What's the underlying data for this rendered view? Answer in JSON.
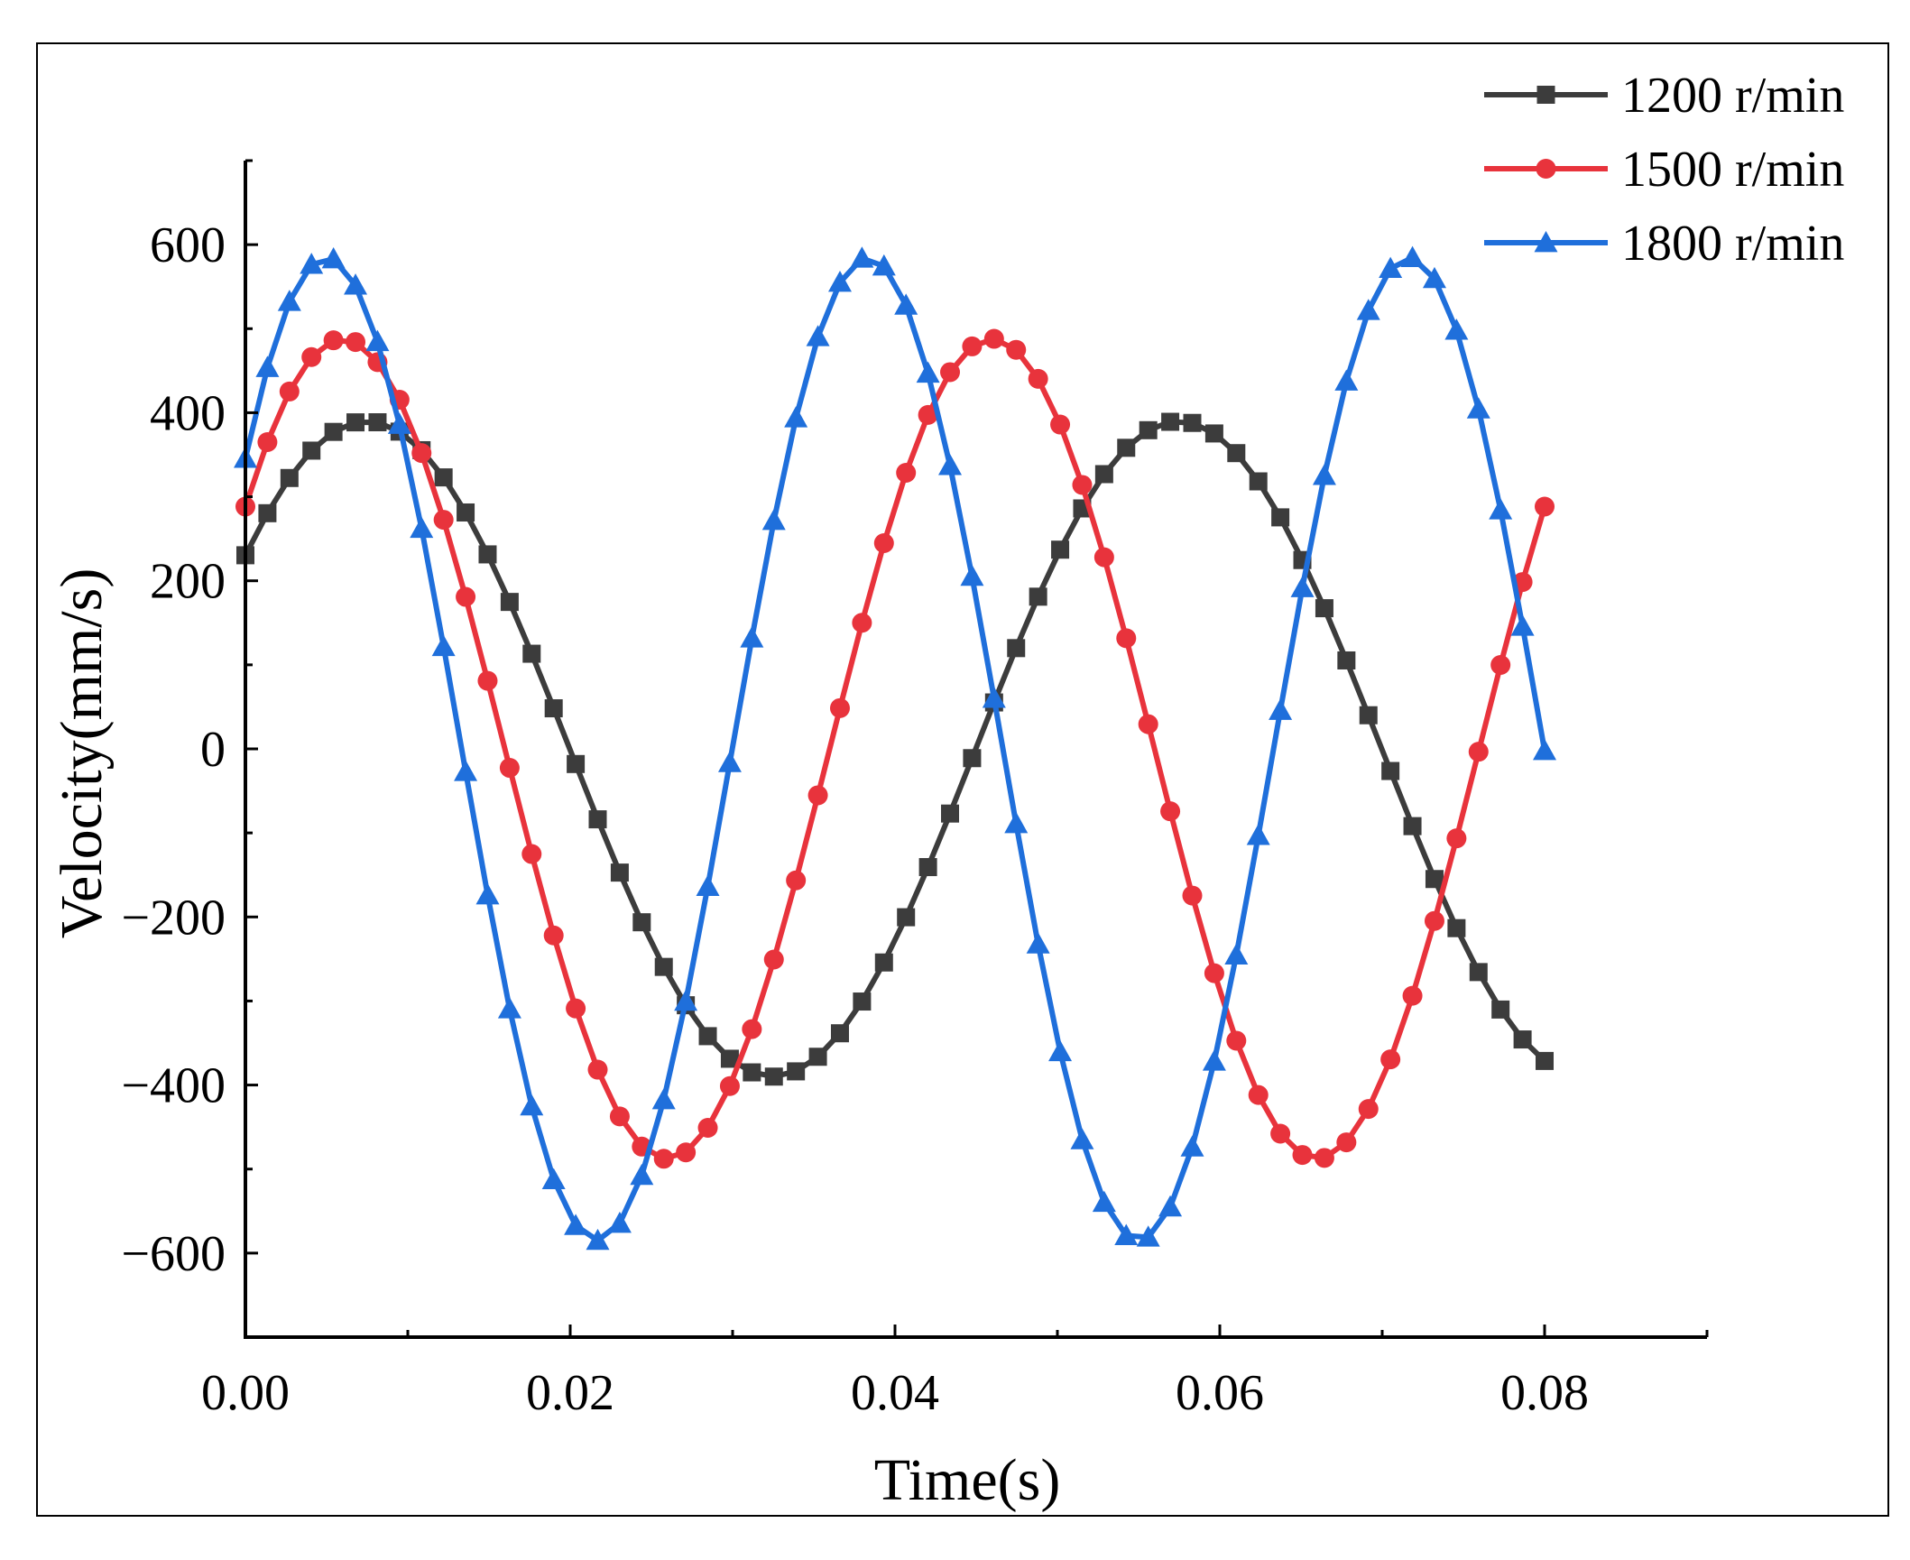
{
  "chart_data": {
    "type": "line",
    "title": "",
    "xlabel": "Time(s)",
    "ylabel": "Velocity(mm/s)",
    "xlim": [
      0,
      0.09
    ],
    "ylim": [
      -700,
      700
    ],
    "xticks": [
      0.0,
      0.02,
      0.04,
      0.06,
      0.08
    ],
    "yticks": [
      -600,
      -400,
      -200,
      0,
      200,
      400,
      600
    ],
    "xtick_labels": [
      "0.00",
      "0.02",
      "0.04",
      "0.06",
      "0.08"
    ],
    "ytick_labels": [
      "−600",
      "−400",
      "−200",
      "0",
      "200",
      "400",
      "600"
    ],
    "legend_position": "top-right",
    "series": [
      {
        "name": "1200 r/min",
        "color": "#3c3c3c",
        "marker": "square",
        "model": {
          "amplitude": 390,
          "frequency_hz": 20,
          "phase_rad": 0.632
        },
        "x_start": 0,
        "x_end": 0.08,
        "n_points": 60
      },
      {
        "name": "1500 r/min",
        "color": "#e8333c",
        "marker": "circle",
        "model": {
          "amplitude": 488,
          "frequency_hz": 25,
          "phase_rad": 0.632
        },
        "x_start": 0,
        "x_end": 0.08,
        "n_points": 60
      },
      {
        "name": "1800 r/min",
        "color": "#1f6fdb",
        "marker": "triangle",
        "model": {
          "amplitude": 585,
          "frequency_hz": 30,
          "phase_rad": 0.632
        },
        "x_start": 0,
        "x_end": 0.08,
        "n_points": 60
      }
    ]
  }
}
